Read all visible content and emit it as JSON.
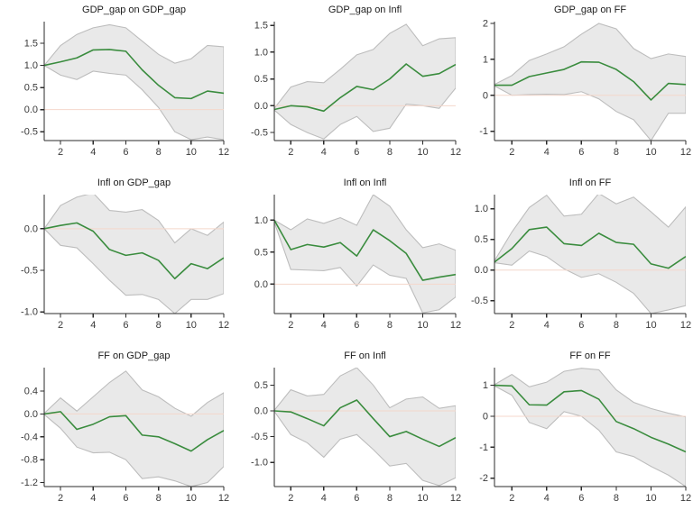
{
  "figure": {
    "background": "#ffffff",
    "grid": "3x3",
    "description": "Impulse response function panels with confidence bands"
  },
  "colors": {
    "line": "#3a8c3e",
    "band_fill": "#e9e9e9",
    "band_stroke": "#bdbdbd",
    "zero_line": "#f4d7cb",
    "axis": "#2b2b2b",
    "tick_label": "#3a3a3a",
    "title": "#1c1c1c"
  },
  "chart_data": [
    {
      "type": "line",
      "title": "GDP_gap on GDP_gap",
      "x": [
        1,
        2,
        3,
        4,
        5,
        6,
        7,
        8,
        9,
        10,
        11,
        12
      ],
      "xticks": [
        2,
        4,
        6,
        8,
        10,
        12
      ],
      "yticks": [
        -0.5,
        0,
        0.5,
        1,
        1.5
      ],
      "ytick_labels": [
        "-0.5",
        "0.0",
        "0.5",
        "1.0",
        "1.5"
      ],
      "ylim": [
        -0.7,
        1.99
      ],
      "zero_line": true,
      "legend": null,
      "series": [
        {
          "name": "mean",
          "values": [
            1.0,
            1.08,
            1.17,
            1.35,
            1.36,
            1.32,
            0.9,
            0.55,
            0.27,
            0.25,
            0.42,
            0.37
          ]
        },
        {
          "name": "upper",
          "values": [
            1.0,
            1.45,
            1.7,
            1.85,
            1.92,
            1.85,
            1.55,
            1.25,
            1.05,
            1.15,
            1.45,
            1.42
          ]
        },
        {
          "name": "lower",
          "values": [
            1.0,
            0.78,
            0.68,
            0.87,
            0.82,
            0.78,
            0.45,
            0.05,
            -0.5,
            -0.68,
            -0.62,
            -0.68
          ]
        }
      ]
    },
    {
      "type": "line",
      "title": "GDP_gap on Infl",
      "x": [
        1,
        2,
        3,
        4,
        5,
        6,
        7,
        8,
        9,
        10,
        11,
        12
      ],
      "xticks": [
        2,
        4,
        6,
        8,
        10,
        12
      ],
      "yticks": [
        -0.5,
        0,
        0.5,
        1,
        1.5
      ],
      "ytick_labels": [
        "-0.5",
        "0.0",
        "0.5",
        "1.0",
        "1.5"
      ],
      "ylim": [
        -0.65,
        1.57
      ],
      "zero_line": true,
      "legend": null,
      "series": [
        {
          "name": "mean",
          "values": [
            -0.07,
            0.0,
            -0.02,
            -0.1,
            0.15,
            0.36,
            0.3,
            0.5,
            0.78,
            0.55,
            0.6,
            0.77
          ]
        },
        {
          "name": "upper",
          "values": [
            -0.05,
            0.35,
            0.45,
            0.43,
            0.68,
            0.95,
            1.05,
            1.35,
            1.52,
            1.12,
            1.25,
            1.27
          ]
        },
        {
          "name": "lower",
          "values": [
            -0.08,
            -0.35,
            -0.5,
            -0.62,
            -0.35,
            -0.2,
            -0.48,
            -0.42,
            0.03,
            0.0,
            -0.05,
            0.33
          ]
        }
      ]
    },
    {
      "type": "line",
      "title": "GDP_gap on FF",
      "x": [
        1,
        2,
        3,
        4,
        5,
        6,
        7,
        8,
        9,
        10,
        11,
        12
      ],
      "xticks": [
        2,
        4,
        6,
        8,
        10,
        12
      ],
      "yticks": [
        -1,
        0,
        1,
        2
      ],
      "ytick_labels": [
        "-1",
        "0",
        "1",
        "2"
      ],
      "ylim": [
        -1.26,
        2.05
      ],
      "zero_line": true,
      "legend": null,
      "series": [
        {
          "name": "mean",
          "values": [
            0.28,
            0.28,
            0.52,
            0.62,
            0.72,
            0.93,
            0.92,
            0.72,
            0.38,
            -0.13,
            0.33,
            0.3
          ]
        },
        {
          "name": "upper",
          "values": [
            0.3,
            0.55,
            0.97,
            1.15,
            1.35,
            1.7,
            2.0,
            1.85,
            1.3,
            1.02,
            1.15,
            1.08
          ]
        },
        {
          "name": "lower",
          "values": [
            0.26,
            0.0,
            0.02,
            0.03,
            0.02,
            0.1,
            -0.1,
            -0.45,
            -0.68,
            -1.26,
            -0.5,
            -0.5
          ]
        }
      ]
    },
    {
      "type": "line",
      "title": "Infl on GDP_gap",
      "x": [
        1,
        2,
        3,
        4,
        5,
        6,
        7,
        8,
        9,
        10,
        11,
        12
      ],
      "xticks": [
        2,
        4,
        6,
        8,
        10,
        12
      ],
      "yticks": [
        -1,
        -0.5,
        0
      ],
      "ytick_labels": [
        "-1.0",
        "-0.5",
        "0.0"
      ],
      "ylim": [
        -1.02,
        0.41
      ],
      "zero_line": true,
      "legend": null,
      "series": [
        {
          "name": "mean",
          "values": [
            0.0,
            0.04,
            0.07,
            -0.03,
            -0.25,
            -0.32,
            -0.29,
            -0.38,
            -0.6,
            -0.42,
            -0.48,
            -0.35
          ]
        },
        {
          "name": "upper",
          "values": [
            0.0,
            0.28,
            0.38,
            0.43,
            0.22,
            0.2,
            0.23,
            0.1,
            -0.17,
            0.0,
            -0.08,
            0.08
          ]
        },
        {
          "name": "lower",
          "values": [
            0.0,
            -0.2,
            -0.23,
            -0.42,
            -0.62,
            -0.8,
            -0.79,
            -0.85,
            -1.02,
            -0.85,
            -0.85,
            -0.78
          ]
        }
      ]
    },
    {
      "type": "line",
      "title": "Infl on Infl",
      "x": [
        1,
        2,
        3,
        4,
        5,
        6,
        7,
        8,
        9,
        10,
        11,
        12
      ],
      "xticks": [
        2,
        4,
        6,
        8,
        10,
        12
      ],
      "yticks": [
        0,
        0.5,
        1
      ],
      "ytick_labels": [
        "0.0",
        "0.5",
        "1.0"
      ],
      "ylim": [
        -0.46,
        1.4
      ],
      "zero_line": true,
      "legend": null,
      "series": [
        {
          "name": "mean",
          "values": [
            1.0,
            0.54,
            0.62,
            0.58,
            0.65,
            0.44,
            0.85,
            0.68,
            0.48,
            0.06,
            0.11,
            0.15
          ]
        },
        {
          "name": "upper",
          "values": [
            1.0,
            0.85,
            1.02,
            0.95,
            1.04,
            0.92,
            1.4,
            1.22,
            0.85,
            0.57,
            0.63,
            0.53
          ]
        },
        {
          "name": "lower",
          "values": [
            0.97,
            0.23,
            0.22,
            0.21,
            0.26,
            -0.03,
            0.3,
            0.14,
            0.09,
            -0.45,
            -0.4,
            -0.2
          ]
        }
      ]
    },
    {
      "type": "line",
      "title": "Infl on FF",
      "x": [
        1,
        2,
        3,
        4,
        5,
        6,
        7,
        8,
        9,
        10,
        11,
        12
      ],
      "xticks": [
        2,
        4,
        6,
        8,
        10,
        12
      ],
      "yticks": [
        -0.5,
        0,
        0.5,
        1
      ],
      "ytick_labels": [
        "-0.5",
        "0.0",
        "0.5",
        "1.0"
      ],
      "ylim": [
        -0.71,
        1.23
      ],
      "zero_line": true,
      "legend": null,
      "series": [
        {
          "name": "mean",
          "values": [
            0.13,
            0.35,
            0.66,
            0.7,
            0.43,
            0.4,
            0.6,
            0.45,
            0.42,
            0.1,
            0.03,
            0.22
          ]
        },
        {
          "name": "upper",
          "values": [
            0.15,
            0.62,
            1.02,
            1.22,
            0.88,
            0.91,
            1.25,
            1.08,
            1.19,
            0.95,
            0.7,
            1.03
          ]
        },
        {
          "name": "lower",
          "values": [
            0.12,
            0.08,
            0.31,
            0.22,
            0.02,
            -0.12,
            -0.06,
            -0.2,
            -0.38,
            -0.71,
            -0.65,
            -0.58
          ]
        }
      ]
    },
    {
      "type": "line",
      "title": "FF on GDP_gap",
      "x": [
        1,
        2,
        3,
        4,
        5,
        6,
        7,
        8,
        9,
        10,
        11,
        12
      ],
      "xticks": [
        2,
        4,
        6,
        8,
        10,
        12
      ],
      "yticks": [
        -1.2,
        -0.8,
        -0.4,
        0,
        0.4
      ],
      "ytick_labels": [
        "-1.2",
        "-0.8",
        "-0.4",
        "0.0",
        "0.4"
      ],
      "ylim": [
        -1.27,
        0.81
      ],
      "zero_line": true,
      "legend": null,
      "series": [
        {
          "name": "mean",
          "values": [
            0.0,
            0.04,
            -0.27,
            -0.18,
            -0.05,
            -0.03,
            -0.37,
            -0.4,
            -0.52,
            -0.65,
            -0.45,
            -0.29
          ]
        },
        {
          "name": "upper",
          "values": [
            0.01,
            0.28,
            0.05,
            0.3,
            0.55,
            0.75,
            0.42,
            0.3,
            0.1,
            -0.04,
            0.2,
            0.37
          ]
        },
        {
          "name": "lower",
          "values": [
            -0.01,
            -0.25,
            -0.58,
            -0.68,
            -0.67,
            -0.8,
            -1.13,
            -1.1,
            -1.17,
            -1.27,
            -1.2,
            -0.92
          ]
        }
      ]
    },
    {
      "type": "line",
      "title": "FF on Infl",
      "x": [
        1,
        2,
        3,
        4,
        5,
        6,
        7,
        8,
        9,
        10,
        11,
        12
      ],
      "xticks": [
        2,
        4,
        6,
        8,
        10,
        12
      ],
      "yticks": [
        -1,
        -0.5,
        0,
        0.5
      ],
      "ytick_labels": [
        "-1.0",
        "-0.5",
        "0.0",
        "0.5"
      ],
      "ylim": [
        -1.47,
        0.84
      ],
      "zero_line": true,
      "legend": null,
      "series": [
        {
          "name": "mean",
          "values": [
            0.0,
            -0.02,
            -0.15,
            -0.29,
            0.06,
            0.21,
            -0.15,
            -0.5,
            -0.4,
            -0.55,
            -0.69,
            -0.52
          ]
        },
        {
          "name": "upper",
          "values": [
            0.01,
            0.41,
            0.29,
            0.32,
            0.68,
            0.84,
            0.5,
            0.06,
            0.23,
            0.27,
            0.05,
            0.1
          ]
        },
        {
          "name": "lower",
          "values": [
            -0.01,
            -0.46,
            -0.62,
            -0.9,
            -0.55,
            -0.46,
            -0.75,
            -1.07,
            -1.02,
            -1.35,
            -1.45,
            -1.3
          ]
        }
      ]
    },
    {
      "type": "line",
      "title": "FF on FF",
      "x": [
        1,
        2,
        3,
        4,
        5,
        6,
        7,
        8,
        9,
        10,
        11,
        12
      ],
      "xticks": [
        2,
        4,
        6,
        8,
        10,
        12
      ],
      "yticks": [
        -2,
        -1,
        0,
        1
      ],
      "ytick_labels": [
        "-2",
        "-1",
        "0",
        "1"
      ],
      "ylim": [
        -2.27,
        1.57
      ],
      "zero_line": true,
      "legend": null,
      "series": [
        {
          "name": "mean",
          "values": [
            1.0,
            0.98,
            0.37,
            0.36,
            0.79,
            0.83,
            0.55,
            -0.17,
            -0.4,
            -0.68,
            -0.9,
            -1.15
          ]
        },
        {
          "name": "upper",
          "values": [
            1.02,
            1.35,
            0.95,
            1.1,
            1.45,
            1.55,
            1.5,
            0.85,
            0.45,
            0.25,
            0.1,
            -0.02
          ]
        },
        {
          "name": "lower",
          "values": [
            0.98,
            0.68,
            -0.2,
            -0.4,
            0.15,
            0.0,
            -0.45,
            -1.15,
            -1.3,
            -1.62,
            -1.9,
            -2.27
          ]
        }
      ]
    }
  ]
}
